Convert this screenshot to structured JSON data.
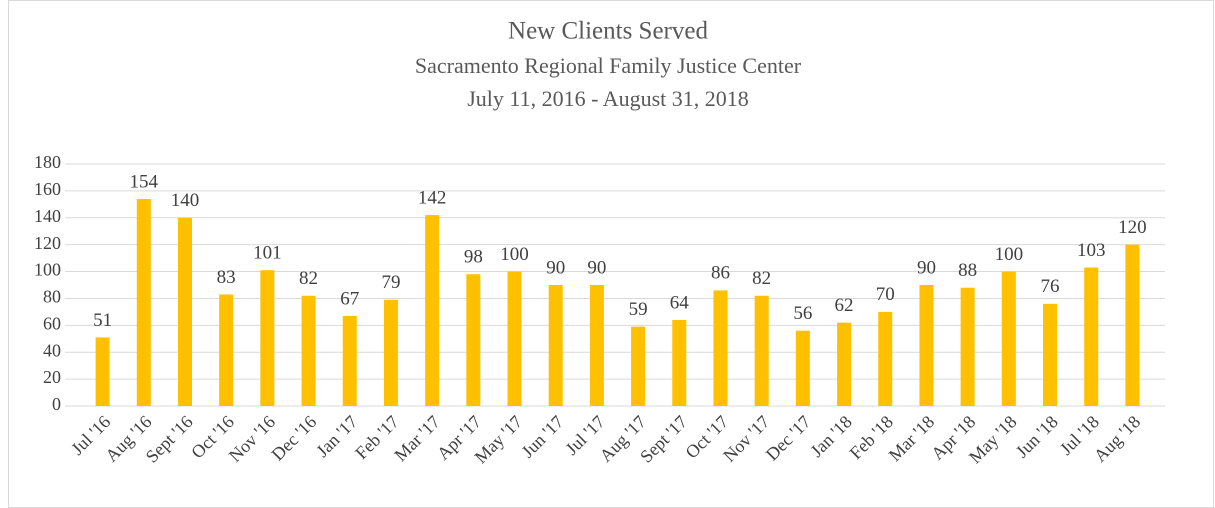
{
  "chart_data": {
    "type": "bar",
    "title": "New Clients Served",
    "subtitle": [
      "Sacramento Regional Family Justice Center",
      "July 11, 2016 - August 31, 2018"
    ],
    "categories": [
      "Jul '16",
      "Aug '16",
      "Sept '16",
      "Oct '16",
      "Nov '16",
      "Dec '16",
      "Jan '17",
      "Feb '17",
      "Mar '17",
      "Apr '17",
      "May '17",
      "Jun '17",
      "Jul '17",
      "Aug '17",
      "Sept '17",
      "Oct '17",
      "Nov '17",
      "Dec '17",
      "Jan '18",
      "Feb '18",
      "Mar '18",
      "Apr '18",
      "May '18",
      "Jun '18",
      "Jul '18",
      "Aug '18"
    ],
    "values": [
      51,
      154,
      140,
      83,
      101,
      82,
      67,
      79,
      142,
      98,
      100,
      90,
      90,
      59,
      64,
      86,
      82,
      56,
      62,
      70,
      90,
      88,
      100,
      76,
      103,
      120
    ],
    "color": "#ffc000",
    "ylim": [
      0,
      180
    ],
    "yticks": [
      0,
      20,
      40,
      60,
      80,
      100,
      120,
      140,
      160,
      180
    ],
    "grid": true
  }
}
